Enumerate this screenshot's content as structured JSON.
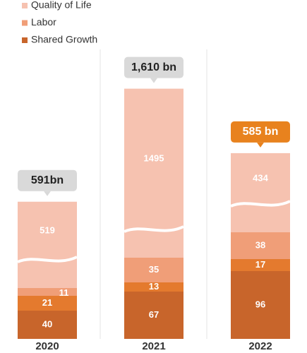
{
  "chart_data": {
    "type": "stacked-bar",
    "categories": [
      "2020",
      "2021",
      "2022"
    ],
    "series": [
      {
        "name": "Shared Growth",
        "color": "#c8652b",
        "values": [
          40,
          67,
          96
        ]
      },
      {
        "color": "#e47a2e",
        "values": [
          21,
          13,
          17
        ]
      },
      {
        "name": "Labor",
        "color": "#f09e78",
        "values": [
          11,
          35,
          38
        ]
      },
      {
        "name": "Quality of Life",
        "color": "#f6c2b0",
        "values": [
          519,
          1495,
          434
        ]
      }
    ],
    "totals": {
      "values": [
        591,
        1610,
        585
      ],
      "value_labels": [
        "591bn",
        "1,610 bn",
        "585 bn"
      ]
    },
    "highlight_index": 2,
    "highlight_color": "#e8821e",
    "callout_color": "#d9d9d9"
  }
}
